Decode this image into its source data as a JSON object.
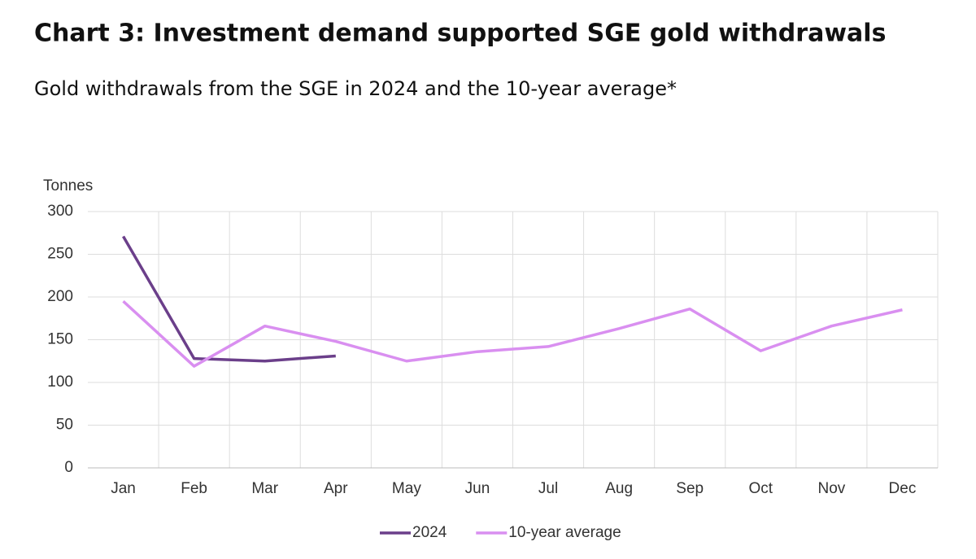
{
  "chart_data": {
    "type": "line",
    "title": "Chart 3: Investment demand supported SGE gold withdrawals",
    "subtitle": "Gold withdrawals from the SGE in 2024 and the 10-year average*",
    "y_label": "Tonnes",
    "categories": [
      "Jan",
      "Feb",
      "Mar",
      "Apr",
      "May",
      "Jun",
      "Jul",
      "Aug",
      "Sep",
      "Oct",
      "Nov",
      "Dec"
    ],
    "series": [
      {
        "name": "2024",
        "color": "#6b3f8a",
        "values": [
          271,
          128,
          125,
          131,
          null,
          null,
          null,
          null,
          null,
          null,
          null,
          null
        ]
      },
      {
        "name": "10-year average",
        "color": "#d98ff0",
        "values": [
          195,
          119,
          166,
          148,
          125,
          136,
          142,
          163,
          186,
          137,
          166,
          185
        ]
      }
    ],
    "ylim": [
      0,
      300
    ],
    "yticks": [
      0,
      50,
      100,
      150,
      200,
      250,
      300
    ],
    "grid": true,
    "legend": "bottom"
  }
}
